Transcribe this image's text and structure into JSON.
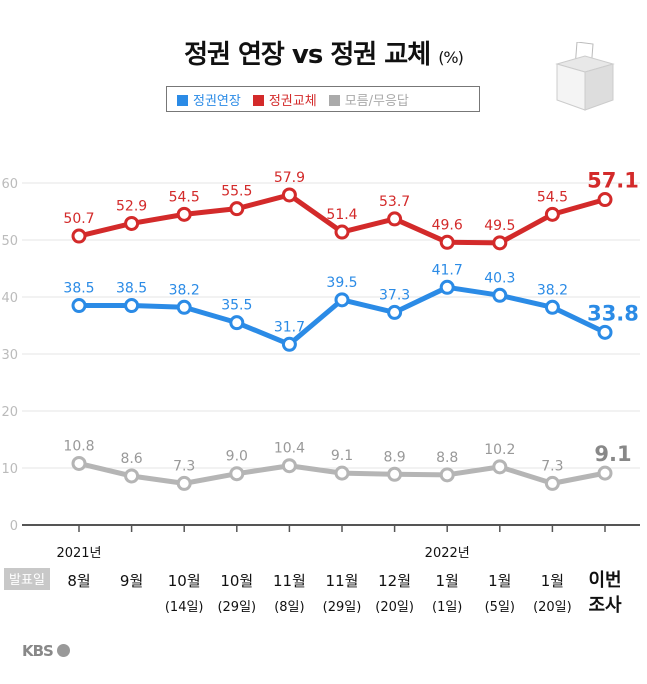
{
  "title": {
    "main": "정권 연장 vs 정권 교체",
    "unit": "(%)"
  },
  "logo": "KBS",
  "chart_data": {
    "type": "line",
    "ylim": [
      0,
      60
    ],
    "yticks": [
      0,
      10,
      20,
      30,
      40,
      50,
      60
    ],
    "grid": true,
    "legend_position": "top",
    "categories": [
      "8월",
      "9월",
      "10월 (14일)",
      "10월 (29일)",
      "11월 (8일)",
      "11월 (29일)",
      "12월 (20일)",
      "1월 (1일)",
      "1월 (5일)",
      "1월 (20일)",
      "이번 조사"
    ],
    "category_lines": [
      [
        "8월",
        ""
      ],
      [
        "9월",
        ""
      ],
      [
        "10월",
        "(14일)"
      ],
      [
        "10월",
        "(29일)"
      ],
      [
        "11월",
        "(8일)"
      ],
      [
        "11월",
        "(29일)"
      ],
      [
        "12월",
        "(20일)"
      ],
      [
        "1월",
        "(1일)"
      ],
      [
        "1월",
        "(5일)"
      ],
      [
        "1월",
        "(20일)"
      ],
      [
        "이번",
        "조사"
      ]
    ],
    "year_labels": [
      {
        "index": 0,
        "label": "2021년"
      },
      {
        "index": 7,
        "label": "2022년"
      }
    ],
    "x_header": "발표일",
    "series": [
      {
        "name": "정권연장",
        "color": "#2b8be6",
        "values": [
          38.5,
          38.5,
          38.2,
          35.5,
          31.7,
          39.5,
          37.3,
          41.7,
          40.3,
          38.2,
          33.8
        ]
      },
      {
        "name": "정권교체",
        "color": "#d32a2a",
        "values": [
          50.7,
          52.9,
          54.5,
          55.5,
          57.9,
          51.4,
          53.7,
          49.6,
          49.5,
          54.5,
          57.1
        ]
      },
      {
        "name": "모름/무응답",
        "color": "#b5b5b5",
        "values": [
          10.8,
          8.6,
          7.3,
          9.0,
          10.4,
          9.1,
          8.9,
          8.8,
          10.2,
          7.3,
          9.1
        ]
      }
    ]
  }
}
